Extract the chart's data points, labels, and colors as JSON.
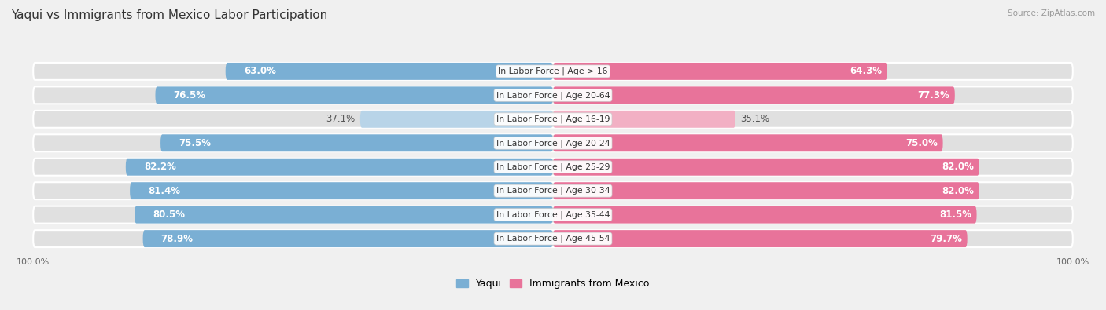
{
  "title": "Yaqui vs Immigrants from Mexico Labor Participation",
  "source": "Source: ZipAtlas.com",
  "categories": [
    "In Labor Force | Age > 16",
    "In Labor Force | Age 20-64",
    "In Labor Force | Age 16-19",
    "In Labor Force | Age 20-24",
    "In Labor Force | Age 25-29",
    "In Labor Force | Age 30-34",
    "In Labor Force | Age 35-44",
    "In Labor Force | Age 45-54"
  ],
  "yaqui_values": [
    63.0,
    76.5,
    37.1,
    75.5,
    82.2,
    81.4,
    80.5,
    78.9
  ],
  "mexico_values": [
    64.3,
    77.3,
    35.1,
    75.0,
    82.0,
    82.0,
    81.5,
    79.7
  ],
  "yaqui_color": "#7aafd4",
  "mexico_color": "#e8739a",
  "yaqui_color_light": "#b8d4e8",
  "mexico_color_light": "#f2b0c4",
  "bg_color": "#f0f0f0",
  "row_bg_color": "#e0e0e0",
  "max_val": 100.0,
  "bar_height": 0.72,
  "label_fontsize": 8.5,
  "title_fontsize": 11,
  "legend_fontsize": 9,
  "category_fontsize": 7.8,
  "axis_label_fontsize": 8
}
